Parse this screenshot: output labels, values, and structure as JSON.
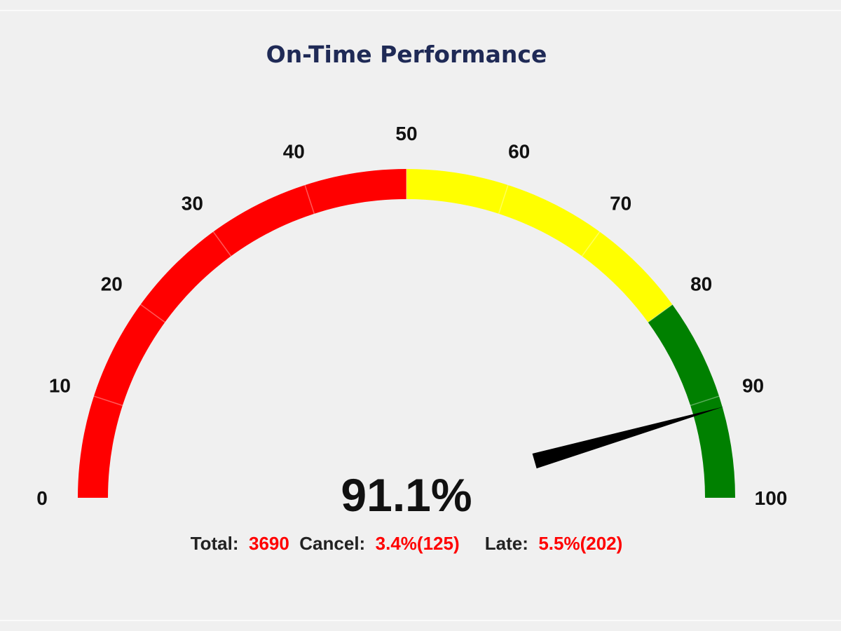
{
  "chart_data": {
    "type": "gauge",
    "title": "On-Time Performance",
    "value": 91.1,
    "value_label": "91.1%",
    "range": [
      0,
      100
    ],
    "ticks": [
      "0",
      "10",
      "20",
      "30",
      "40",
      "50",
      "60",
      "70",
      "80",
      "90",
      "100"
    ],
    "bands": [
      {
        "from": 0,
        "to": 50,
        "color": "#ff0000"
      },
      {
        "from": 50,
        "to": 80,
        "color": "#ffff00"
      },
      {
        "from": 80,
        "to": 100,
        "color": "#008000"
      }
    ],
    "needle_color": "#000000"
  },
  "stats": {
    "total_label": "Total:",
    "total_value": "3690",
    "cancel_label": "Cancel:",
    "cancel_value": "3.4%(125)",
    "late_label": "Late:",
    "late_value": "5.5%(202)"
  }
}
